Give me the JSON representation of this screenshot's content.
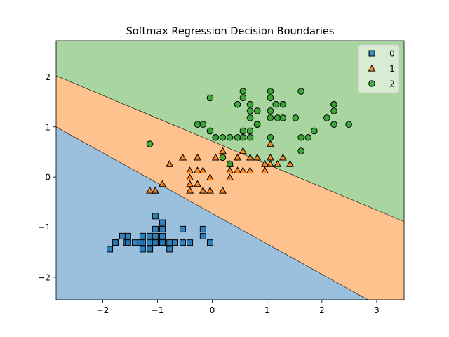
{
  "chart_data": {
    "type": "scatter",
    "title": "Softmax Regression Decision Boundaries",
    "xlabel": "",
    "ylabel": "",
    "xlim": [
      -2.85,
      3.5
    ],
    "ylim": [
      -2.45,
      2.72
    ],
    "x_ticks": [
      -2,
      -1,
      0,
      1,
      2,
      3
    ],
    "y_ticks": [
      -2,
      -1,
      0,
      1,
      2
    ],
    "x_tick_labels": [
      "−2",
      "−1",
      "0",
      "1",
      "2",
      "3"
    ],
    "y_tick_labels": [
      "−2",
      "−1",
      "0",
      "1",
      "2"
    ],
    "grid": false,
    "legend_position": "top-right",
    "regions": [
      {
        "class": "0",
        "color": "#9ac0dd"
      },
      {
        "class": "1",
        "color": "#fdc28e"
      },
      {
        "class": "2",
        "color": "#a8d5a0"
      }
    ],
    "boundaries": [
      {
        "name": "boundary-0-1",
        "points": [
          [
            -2.85,
            1.0
          ],
          [
            3.5,
            -2.85
          ]
        ]
      },
      {
        "name": "boundary-1-2",
        "points": [
          [
            -2.85,
            2.02
          ],
          [
            3.5,
            -0.89
          ]
        ]
      }
    ],
    "series": [
      {
        "name": "0",
        "marker": "square",
        "color": "#1f77b4",
        "points": [
          [
            -1.87,
            -1.44
          ],
          [
            -1.77,
            -1.31
          ],
          [
            -1.77,
            -1.31
          ],
          [
            -1.64,
            -1.18
          ],
          [
            -1.57,
            -1.31
          ],
          [
            -1.54,
            -1.18
          ],
          [
            -1.54,
            -1.31
          ],
          [
            -1.41,
            -1.31
          ],
          [
            -1.31,
            -1.31
          ],
          [
            -1.27,
            -1.44
          ],
          [
            -1.27,
            -1.18
          ],
          [
            -1.27,
            -1.31
          ],
          [
            -1.14,
            -1.44
          ],
          [
            -1.14,
            -1.31
          ],
          [
            -1.14,
            -1.18
          ],
          [
            -1.14,
            -1.44
          ],
          [
            -1.04,
            -0.78
          ],
          [
            -1.04,
            -1.04
          ],
          [
            -1.04,
            -1.18
          ],
          [
            -1.04,
            -1.31
          ],
          [
            -1.04,
            -1.31
          ],
          [
            -0.91,
            -0.91
          ],
          [
            -0.91,
            -1.04
          ],
          [
            -0.91,
            -1.18
          ],
          [
            -0.91,
            -1.31
          ],
          [
            -0.91,
            -1.31
          ],
          [
            -0.78,
            -1.31
          ],
          [
            -0.78,
            -1.44
          ],
          [
            -0.68,
            -1.31
          ],
          [
            -0.54,
            -1.04
          ],
          [
            -0.54,
            -1.31
          ],
          [
            -0.41,
            -1.31
          ],
          [
            -0.17,
            -1.04
          ],
          [
            -0.17,
            -1.18
          ],
          [
            -0.04,
            -1.31
          ]
        ]
      },
      {
        "name": "1",
        "marker": "triangle",
        "color": "#ff7f0e",
        "points": [
          [
            -1.14,
            -0.27
          ],
          [
            -1.04,
            -0.27
          ],
          [
            -1.04,
            -0.27
          ],
          [
            -0.91,
            -0.14
          ],
          [
            -0.78,
            0.26
          ],
          [
            -0.54,
            0.39
          ],
          [
            -0.41,
            0.13
          ],
          [
            -0.41,
            -0.01
          ],
          [
            -0.41,
            -0.14
          ],
          [
            -0.41,
            -0.27
          ],
          [
            -0.27,
            0.39
          ],
          [
            -0.27,
            0.13
          ],
          [
            -0.27,
            -0.14
          ],
          [
            -0.17,
            0.13
          ],
          [
            -0.17,
            0.13
          ],
          [
            -0.17,
            -0.27
          ],
          [
            -0.04,
            -0.01
          ],
          [
            -0.04,
            -0.01
          ],
          [
            -0.04,
            -0.27
          ],
          [
            0.06,
            0.39
          ],
          [
            0.19,
            0.52
          ],
          [
            0.19,
            -0.27
          ],
          [
            0.32,
            0.26
          ],
          [
            0.32,
            0.13
          ],
          [
            0.32,
            -0.01
          ],
          [
            0.46,
            0.39
          ],
          [
            0.46,
            0.13
          ],
          [
            0.56,
            0.52
          ],
          [
            0.56,
            0.13
          ],
          [
            0.69,
            0.39
          ],
          [
            0.69,
            0.13
          ],
          [
            0.82,
            0.39
          ],
          [
            0.96,
            0.26
          ],
          [
            0.96,
            0.13
          ],
          [
            1.06,
            0.66
          ],
          [
            1.06,
            0.39
          ],
          [
            1.06,
            0.26
          ],
          [
            1.19,
            0.26
          ],
          [
            1.29,
            0.39
          ],
          [
            1.42,
            0.26
          ]
        ]
      },
      {
        "name": "2",
        "marker": "circle",
        "color": "#2ca02c",
        "points": [
          [
            -1.14,
            0.66
          ],
          [
            -0.27,
            1.05
          ],
          [
            -0.17,
            1.05
          ],
          [
            -0.04,
            0.92
          ],
          [
            -0.04,
            0.92
          ],
          [
            -0.04,
            1.58
          ],
          [
            0.06,
            0.79
          ],
          [
            0.06,
            0.79
          ],
          [
            0.19,
            0.39
          ],
          [
            0.19,
            0.79
          ],
          [
            0.32,
            0.79
          ],
          [
            0.32,
            0.26
          ],
          [
            0.46,
            0.79
          ],
          [
            0.46,
            1.45
          ],
          [
            0.56,
            0.92
          ],
          [
            0.56,
            0.79
          ],
          [
            0.56,
            1.58
          ],
          [
            0.56,
            1.71
          ],
          [
            0.69,
            0.92
          ],
          [
            0.69,
            1.18
          ],
          [
            0.69,
            1.32
          ],
          [
            0.69,
            1.45
          ],
          [
            0.69,
            0.79
          ],
          [
            0.82,
            1.05
          ],
          [
            0.82,
            1.05
          ],
          [
            0.82,
            1.32
          ],
          [
            1.06,
            0.79
          ],
          [
            1.06,
            1.18
          ],
          [
            1.06,
            1.32
          ],
          [
            1.06,
            1.58
          ],
          [
            1.06,
            1.71
          ],
          [
            1.16,
            1.45
          ],
          [
            1.19,
            1.18
          ],
          [
            1.29,
            1.18
          ],
          [
            1.29,
            1.45
          ],
          [
            1.29,
            1.45
          ],
          [
            1.52,
            1.18
          ],
          [
            1.62,
            1.71
          ],
          [
            1.62,
            0.79
          ],
          [
            1.62,
            0.52
          ],
          [
            1.75,
            0.79
          ],
          [
            1.86,
            0.92
          ],
          [
            2.09,
            1.18
          ],
          [
            2.22,
            1.45
          ],
          [
            2.22,
            1.45
          ],
          [
            2.22,
            1.32
          ],
          [
            2.22,
            1.05
          ],
          [
            2.49,
            1.05
          ]
        ]
      }
    ],
    "colors": {
      "class0_region": "#9ac0dd",
      "class1_region": "#fdc28e",
      "class2_region": "#a8d5a0",
      "class0_marker": "#1f77b4",
      "class1_marker": "#ff7f0e",
      "class2_marker": "#2ca02c"
    }
  }
}
